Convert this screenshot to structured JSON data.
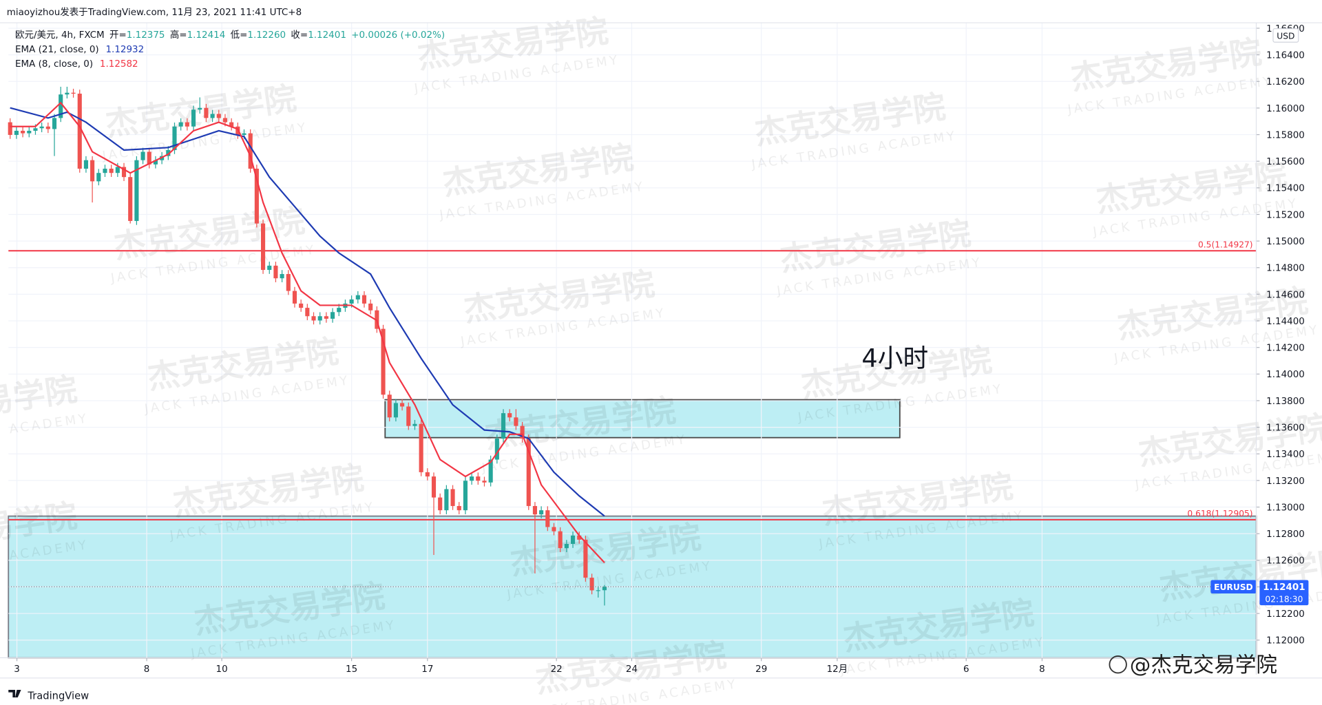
{
  "header": "miaoyizhou发表于TradingView.com, 11月 23, 2021 11:41 UTC+8",
  "watermark": {
    "title": "杰克交易学院",
    "subtitle": "JACK TRADING ACADEMY"
  },
  "footer": {
    "brand": "TradingView",
    "credit": "@杰克交易学院"
  },
  "chart_data": {
    "type": "candlestick",
    "symbol": "欧元/美元, 4h, FXCM",
    "ohlc_labels": [
      "开=",
      "高=",
      "低=",
      "收="
    ],
    "ohlc_value_labels": [
      "1.12375",
      "1.12414",
      "1.12260",
      "1.12401"
    ],
    "change": "+0.00026 (+0.02%)",
    "ticker": "EURUSD",
    "countdown": "02:18:30",
    "currency": "USD",
    "annotation": "4小时",
    "up_color": "#26a69a",
    "down_color": "#ef5350",
    "x": [
      0,
      1,
      2,
      3,
      4,
      5,
      6,
      7,
      8,
      9,
      10,
      11,
      12,
      13,
      14,
      15,
      16,
      17,
      18,
      19,
      20,
      21,
      22,
      23,
      24,
      25,
      26,
      27,
      28,
      29,
      30,
      31,
      32,
      33,
      34,
      35,
      36,
      37,
      38,
      39,
      40,
      41,
      42,
      43,
      44,
      45,
      46,
      47,
      48,
      49,
      50,
      51,
      52,
      53,
      54,
      55,
      56,
      57,
      58,
      59,
      60,
      61,
      62,
      63,
      64,
      65,
      66,
      67,
      68,
      69,
      70,
      71,
      72,
      73,
      74,
      75,
      76,
      77,
      78,
      79,
      80,
      81,
      82,
      83,
      84,
      85,
      86,
      87,
      88,
      89,
      90,
      91,
      92,
      93,
      94
    ],
    "open": [
      1.15893,
      1.15798,
      1.15829,
      1.1581,
      1.15829,
      1.15848,
      1.15861,
      1.15842,
      1.15925,
      1.16102,
      1.16115,
      1.16108,
      1.15544,
      1.15608,
      1.15449,
      1.15512,
      1.15544,
      1.15512,
      1.15557,
      1.15481,
      1.15151,
      1.15608,
      1.15671,
      1.15576,
      1.15608,
      1.15639,
      1.15684,
      1.15861,
      1.15893,
      1.15861,
      1.15988,
      1.16001,
      1.15925,
      1.15956,
      1.15925,
      1.15893,
      1.15861,
      1.15798,
      1.1581,
      1.15544,
      1.15132,
      1.14783,
      1.14815,
      1.1472,
      1.14752,
      1.14625,
      1.1453,
      1.14498,
      1.14435,
      1.14403,
      1.14435,
      1.14416,
      1.14466,
      1.14498,
      1.1453,
      1.14561,
      1.14593,
      1.1453,
      1.14479,
      1.1434,
      1.13845,
      1.13674,
      1.13782,
      1.13756,
      1.1361,
      1.13625,
      1.13262,
      1.1323,
      1.13072,
      1.12976,
      1.13135,
      1.13008,
      1.12976,
      1.13198,
      1.1323,
      1.13198,
      1.13185,
      1.13357,
      1.13515,
      1.13706,
      1.13674,
      1.1361,
      1.13515,
      1.13008,
      1.12945,
      1.12976,
      1.1285,
      1.12818,
      1.12691,
      1.12723,
      1.12786,
      1.12755,
      1.12469,
      1.12374,
      1.12375
    ],
    "high": [
      1.15923,
      1.15859,
      1.15859,
      1.15859,
      1.15878,
      1.15891,
      1.15891,
      1.15955,
      1.1616,
      1.1616,
      1.16145,
      1.16138,
      1.15638,
      1.15638,
      1.15542,
      1.15574,
      1.15574,
      1.15587,
      1.15587,
      1.15511,
      1.15638,
      1.15701,
      1.15701,
      1.15638,
      1.15669,
      1.15714,
      1.15891,
      1.15923,
      1.15923,
      1.16018,
      1.1608,
      1.16031,
      1.15986,
      1.15986,
      1.15955,
      1.15923,
      1.15891,
      1.1584,
      1.1584,
      1.15574,
      1.15162,
      1.14845,
      1.14845,
      1.14782,
      1.14782,
      1.14655,
      1.1456,
      1.14528,
      1.14465,
      1.14465,
      1.14465,
      1.14496,
      1.14528,
      1.1456,
      1.14591,
      1.14623,
      1.14623,
      1.1456,
      1.14509,
      1.1437,
      1.13875,
      1.13812,
      1.13812,
      1.13786,
      1.13655,
      1.13655,
      1.13292,
      1.1326,
      1.13102,
      1.13165,
      1.13165,
      1.13038,
      1.13228,
      1.1326,
      1.1326,
      1.13228,
      1.13387,
      1.13545,
      1.13736,
      1.13736,
      1.13736,
      1.1364,
      1.13545,
      1.13038,
      1.13006,
      1.13006,
      1.1288,
      1.12848,
      1.12753,
      1.12816,
      1.12816,
      1.12785,
      1.12499,
      1.12405,
      1.12414
    ],
    "low": [
      1.15768,
      1.15768,
      1.1578,
      1.1578,
      1.15799,
      1.15818,
      1.15812,
      1.15639,
      1.15895,
      1.16072,
      1.16078,
      1.15514,
      1.15514,
      1.1529,
      1.15419,
      1.15482,
      1.15482,
      1.15482,
      1.15451,
      1.15132,
      1.15121,
      1.15578,
      1.15546,
      1.15546,
      1.15578,
      1.15609,
      1.15654,
      1.15831,
      1.15831,
      1.15831,
      1.15958,
      1.15895,
      1.15895,
      1.15895,
      1.15863,
      1.15831,
      1.15768,
      1.15768,
      1.15514,
      1.15102,
      1.14753,
      1.14753,
      1.1469,
      1.1469,
      1.14595,
      1.145,
      1.14468,
      1.14405,
      1.14373,
      1.14373,
      1.14386,
      1.14386,
      1.14436,
      1.14468,
      1.145,
      1.14531,
      1.145,
      1.14449,
      1.1431,
      1.13815,
      1.13644,
      1.13644,
      1.13726,
      1.1358,
      1.1358,
      1.13232,
      1.132,
      1.1264,
      1.12946,
      1.12946,
      1.12978,
      1.12946,
      1.12946,
      1.13168,
      1.13168,
      1.13155,
      1.13155,
      1.13327,
      1.13485,
      1.13644,
      1.1358,
      1.13485,
      1.12978,
      1.12501,
      1.12915,
      1.1282,
      1.12788,
      1.12661,
      1.12661,
      1.12693,
      1.12725,
      1.12439,
      1.12344,
      1.1232,
      1.1226
    ],
    "close": [
      1.15798,
      1.15829,
      1.1581,
      1.15829,
      1.15848,
      1.15861,
      1.15842,
      1.15925,
      1.16102,
      1.16115,
      1.16108,
      1.15544,
      1.15608,
      1.15449,
      1.15512,
      1.15544,
      1.15512,
      1.15557,
      1.15481,
      1.15151,
      1.15608,
      1.15671,
      1.15576,
      1.15608,
      1.15639,
      1.15684,
      1.15861,
      1.15893,
      1.15861,
      1.15988,
      1.16001,
      1.15925,
      1.15956,
      1.15925,
      1.15893,
      1.15861,
      1.15798,
      1.1581,
      1.15544,
      1.15132,
      1.14783,
      1.14815,
      1.1472,
      1.14752,
      1.14625,
      1.1453,
      1.14498,
      1.14435,
      1.14403,
      1.14435,
      1.14416,
      1.14466,
      1.14498,
      1.1453,
      1.14561,
      1.14593,
      1.1453,
      1.14479,
      1.1434,
      1.13845,
      1.13674,
      1.13782,
      1.13756,
      1.1361,
      1.13625,
      1.13262,
      1.1323,
      1.13072,
      1.12976,
      1.13135,
      1.13008,
      1.12976,
      1.13198,
      1.1323,
      1.13198,
      1.13185,
      1.13357,
      1.13515,
      1.13706,
      1.13674,
      1.1361,
      1.13515,
      1.13008,
      1.12945,
      1.12976,
      1.1285,
      1.12818,
      1.12691,
      1.12723,
      1.12786,
      1.12755,
      1.12469,
      1.12374,
      1.12375,
      1.12401
    ],
    "lines": [
      {
        "name": "EMA (21, close, 0)",
        "color": "#1e3bb3",
        "x": [
          0,
          6,
          9,
          12,
          18,
          25,
          29,
          33,
          37,
          41,
          45,
          49,
          52,
          57,
          60,
          65,
          70,
          75,
          79,
          82,
          86,
          90,
          94
        ],
        "values": [
          1.16001,
          1.15925,
          1.15969,
          1.15893,
          1.15684,
          1.15703,
          1.15766,
          1.15829,
          1.15785,
          1.15481,
          1.15259,
          1.15037,
          1.1491,
          1.14752,
          1.14498,
          1.14118,
          1.13769,
          1.13579,
          1.13566,
          1.13515,
          1.13262,
          1.13084,
          1.12932
        ]
      },
      {
        "name": "EMA (8, close, 0)",
        "color": "#f23645",
        "x": [
          0,
          4,
          8,
          11,
          13,
          19,
          25,
          29,
          33,
          36,
          38,
          40,
          43,
          46,
          49,
          54,
          58,
          60,
          64,
          68,
          72,
          76,
          79,
          81,
          84,
          87,
          90,
          94
        ],
        "values": [
          1.15861,
          1.15861,
          1.16039,
          1.15861,
          1.15671,
          1.15512,
          1.15652,
          1.15829,
          1.15893,
          1.15842,
          1.15639,
          1.15291,
          1.1491,
          1.14625,
          1.14517,
          1.14517,
          1.14403,
          1.14086,
          1.13769,
          1.13357,
          1.1323,
          1.13338,
          1.13547,
          1.13547,
          1.13167,
          1.12976,
          1.12786,
          1.12582
        ]
      }
    ],
    "levels": [
      {
        "value": 1.14927,
        "label": "0.5(1.14927)",
        "color": "#f23645"
      },
      {
        "value": 1.12905,
        "label": "0.618(1.12905)",
        "color": "#f23645"
      }
    ],
    "zones": [
      {
        "x": [
          59.3,
          140.7
        ],
        "y": [
          1.13522,
          1.13807
        ],
        "color": "#b2ebf2",
        "border": "#4a4a4a"
      },
      {
        "x": [
          -0.27,
          197.07
        ],
        "y": [
          1.11867,
          1.12932
        ],
        "color": "#b2ebf2",
        "border": "#787b86"
      }
    ],
    "xlim": [
      -0.27,
      197.07
    ],
    "xticks": [
      {
        "value": 1.07,
        "label": "3"
      },
      {
        "value": 21.6,
        "label": "8"
      },
      {
        "value": 33.47,
        "label": "10"
      },
      {
        "value": 54,
        "label": "15"
      },
      {
        "value": 66,
        "label": "17"
      },
      {
        "value": 86.4,
        "label": "22"
      },
      {
        "value": 98.3,
        "label": "24"
      },
      {
        "value": 118.8,
        "label": "29"
      },
      {
        "value": 130.8,
        "label": "12月"
      },
      {
        "value": 151.2,
        "label": "6"
      },
      {
        "value": 163.2,
        "label": "8"
      }
    ],
    "ylim": [
      1.11867,
      1.16641
    ],
    "yticks": [
      {
        "value": 1.12,
        "label": "1.12000"
      },
      {
        "value": 1.122,
        "label": "1.12200"
      },
      {
        "value": 1.124,
        "label": "1.12400"
      },
      {
        "value": 1.126,
        "label": "1.12600"
      },
      {
        "value": 1.128,
        "label": "1.12800"
      },
      {
        "value": 1.13,
        "label": "1.13000"
      },
      {
        "value": 1.132,
        "label": "1.13200"
      },
      {
        "value": 1.134,
        "label": "1.13400"
      },
      {
        "value": 1.136,
        "label": "1.13600"
      },
      {
        "value": 1.138,
        "label": "1.13800"
      },
      {
        "value": 1.14,
        "label": "1.14000"
      },
      {
        "value": 1.142,
        "label": "1.14200"
      },
      {
        "value": 1.144,
        "label": "1.14400"
      },
      {
        "value": 1.146,
        "label": "1.14600"
      },
      {
        "value": 1.148,
        "label": "1.14800"
      },
      {
        "value": 1.15,
        "label": "1.15000"
      },
      {
        "value": 1.152,
        "label": "1.15200"
      },
      {
        "value": 1.154,
        "label": "1.15400"
      },
      {
        "value": 1.156,
        "label": "1.15600"
      },
      {
        "value": 1.158,
        "label": "1.15800"
      },
      {
        "value": 1.16,
        "label": "1.16000"
      },
      {
        "value": 1.162,
        "label": "1.16200"
      },
      {
        "value": 1.164,
        "label": "1.16400"
      },
      {
        "value": 1.166,
        "label": "1.16600"
      }
    ],
    "grid": true
  }
}
